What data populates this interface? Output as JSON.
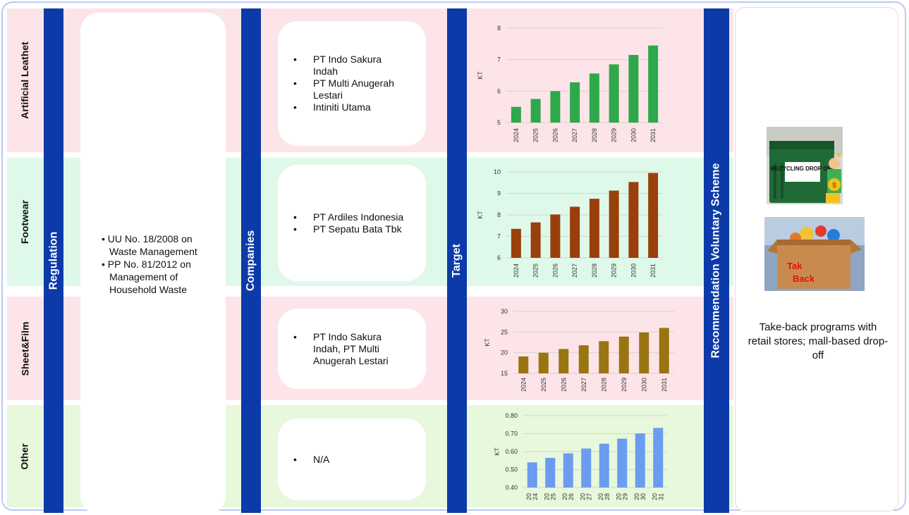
{
  "rows": [
    {
      "label": "Artificial Leathet",
      "companies": [
        "PT Indo Sakura Indah",
        "PT Multi Anugerah Lestari",
        "Intiniti Utama"
      ]
    },
    {
      "label": "Footwear",
      "companies": [
        "PT Ardiles Indonesia",
        "PT Sepatu Bata Tbk"
      ]
    },
    {
      "label": "Sheet&Film",
      "companies": [
        "PT Indo Sakura Indah, PT Multi Anugerah Lestari"
      ]
    },
    {
      "label": "Other",
      "companies": [
        "N/A"
      ]
    }
  ],
  "columns": {
    "regulation": "Regulation",
    "companies": "Companies",
    "target": "Target",
    "recommendation": "Recommendation Voluntary Scheme"
  },
  "regulation_items": [
    "UU No. 18/2008 on Waste Management",
    "PP No. 81/2012 on Management of Household Waste"
  ],
  "recommendation_text": "Take-back programs with retail stores; mall-based drop-off",
  "images": {
    "recycling_sign": "RECYCLING DROP OFF",
    "take_back_sign": [
      "Tak",
      "Back"
    ]
  },
  "chart_data": [
    {
      "type": "bar",
      "categories": [
        "2024",
        "2025",
        "2026",
        "2027",
        "2028",
        "2029",
        "2030",
        "2031"
      ],
      "values": [
        5.5,
        5.75,
        6.0,
        6.28,
        6.56,
        6.85,
        7.15,
        7.45
      ],
      "ylabel": "KT",
      "ylim": [
        5,
        8
      ],
      "yticks": [
        "5",
        "6",
        "7",
        "8"
      ],
      "color": "#2ea84b",
      "grid": true
    },
    {
      "type": "bar",
      "categories": [
        "2024",
        "2025",
        "2026",
        "2027",
        "2028",
        "2029",
        "2030",
        "2031"
      ],
      "values": [
        7.35,
        7.65,
        8.02,
        8.38,
        8.75,
        9.13,
        9.53,
        9.95
      ],
      "ylabel": "KT",
      "ylim": [
        6,
        10
      ],
      "yticks": [
        "6",
        "7",
        "8",
        "9",
        "10"
      ],
      "color": "#993f0b",
      "grid": true
    },
    {
      "type": "bar",
      "categories": [
        "2024",
        "2025",
        "2026",
        "2027",
        "2028",
        "2029",
        "2030",
        "2031"
      ],
      "values": [
        19.1,
        20.0,
        20.9,
        21.8,
        22.8,
        23.9,
        24.9,
        26.0
      ],
      "ylabel": "KT",
      "ylim": [
        15,
        30
      ],
      "yticks": [
        "15",
        "20",
        "25",
        "30"
      ],
      "color": "#987510",
      "grid": true
    },
    {
      "type": "bar",
      "categories": [
        "20 24",
        "20 25",
        "20 26",
        "20 27",
        "20 28",
        "20 29",
        "20 30",
        "20 31"
      ],
      "values": [
        0.54,
        0.565,
        0.59,
        0.617,
        0.644,
        0.672,
        0.701,
        0.732
      ],
      "ylabel": "KT",
      "ylim": [
        0.4,
        0.8
      ],
      "yticks": [
        "0.40",
        "0.50",
        "0.60",
        "0.70",
        "0.80"
      ],
      "color": "#6b9cf0",
      "grid": true
    }
  ]
}
